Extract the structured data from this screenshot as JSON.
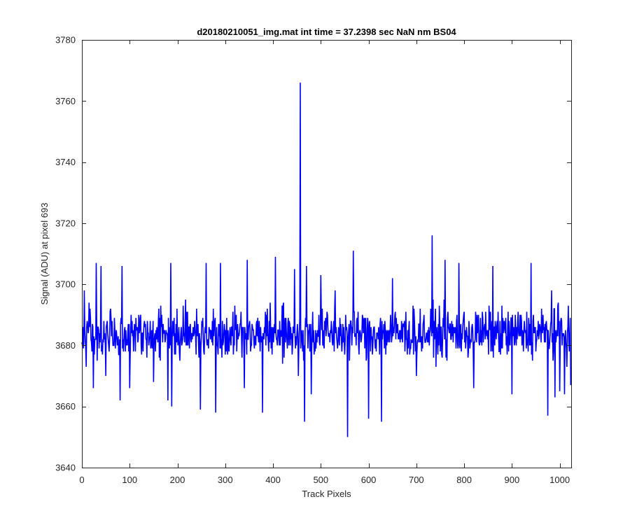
{
  "chart_data": {
    "type": "line",
    "title": "d20180210051_img.mat int time = 37.2398 sec  NaN nm BS04",
    "xlabel": "Track Pixels",
    "ylabel": "Signal (ADU) at pixel 693",
    "xlim": [
      0,
      1024
    ],
    "ylim": [
      3640,
      3780
    ],
    "xticks": [
      0,
      100,
      200,
      300,
      400,
      500,
      600,
      700,
      800,
      900,
      1000
    ],
    "yticks": [
      3640,
      3660,
      3680,
      3700,
      3720,
      3740,
      3760,
      3780
    ],
    "grid": false,
    "series": [
      {
        "color": "#0000ff",
        "baseline": 3684,
        "noise_amplitude": 11,
        "points": [
          {
            "x": 0,
            "y": 3681
          },
          {
            "x": 5,
            "y": 3698
          },
          {
            "x": 9,
            "y": 3673
          },
          {
            "x": 17,
            "y": 3692
          },
          {
            "x": 24,
            "y": 3666
          },
          {
            "x": 30,
            "y": 3707
          },
          {
            "x": 40,
            "y": 3706
          },
          {
            "x": 50,
            "y": 3670
          },
          {
            "x": 63,
            "y": 3688
          },
          {
            "x": 80,
            "y": 3662
          },
          {
            "x": 84,
            "y": 3706
          },
          {
            "x": 100,
            "y": 3666
          },
          {
            "x": 150,
            "y": 3668
          },
          {
            "x": 180,
            "y": 3662
          },
          {
            "x": 186,
            "y": 3707
          },
          {
            "x": 188,
            "y": 3660
          },
          {
            "x": 248,
            "y": 3659
          },
          {
            "x": 260,
            "y": 3707
          },
          {
            "x": 280,
            "y": 3658
          },
          {
            "x": 290,
            "y": 3707
          },
          {
            "x": 340,
            "y": 3666
          },
          {
            "x": 346,
            "y": 3708
          },
          {
            "x": 378,
            "y": 3658
          },
          {
            "x": 405,
            "y": 3709
          },
          {
            "x": 420,
            "y": 3674
          },
          {
            "x": 445,
            "y": 3705
          },
          {
            "x": 453,
            "y": 3670
          },
          {
            "x": 457,
            "y": 3766
          },
          {
            "x": 462,
            "y": 3678
          },
          {
            "x": 466,
            "y": 3655
          },
          {
            "x": 470,
            "y": 3706
          },
          {
            "x": 480,
            "y": 3664
          },
          {
            "x": 500,
            "y": 3703
          },
          {
            "x": 530,
            "y": 3698
          },
          {
            "x": 556,
            "y": 3650
          },
          {
            "x": 568,
            "y": 3711
          },
          {
            "x": 600,
            "y": 3656
          },
          {
            "x": 627,
            "y": 3655
          },
          {
            "x": 650,
            "y": 3702
          },
          {
            "x": 700,
            "y": 3670
          },
          {
            "x": 733,
            "y": 3716
          },
          {
            "x": 760,
            "y": 3708
          },
          {
            "x": 789,
            "y": 3707
          },
          {
            "x": 820,
            "y": 3666
          },
          {
            "x": 860,
            "y": 3706
          },
          {
            "x": 900,
            "y": 3664
          },
          {
            "x": 940,
            "y": 3707
          },
          {
            "x": 975,
            "y": 3657
          },
          {
            "x": 983,
            "y": 3698
          },
          {
            "x": 990,
            "y": 3663
          },
          {
            "x": 1000,
            "y": 3665
          },
          {
            "x": 1010,
            "y": 3664
          },
          {
            "x": 1023,
            "y": 3667
          }
        ]
      }
    ]
  }
}
